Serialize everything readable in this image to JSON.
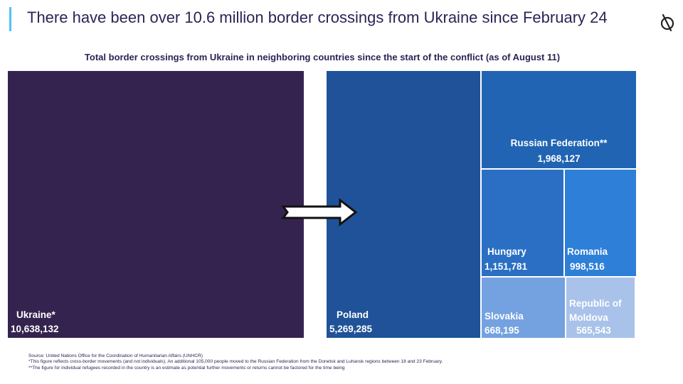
{
  "header": {
    "title": "There have been over 10.6 million border crossings from Ukraine since February 24",
    "logo_icon": "brand-logo-icon"
  },
  "chart_data": {
    "type": "treemap",
    "title": "Total border crossings from Ukraine in neighboring countries since the start of the conflict (as of August 11)",
    "source": {
      "name": "Ukraine*",
      "value": 10638132,
      "value_label": "10,638,132",
      "color": "#35234f"
    },
    "arrow_icon": "right-arrow-icon",
    "destinations": [
      {
        "name": "Poland",
        "value": 5269285,
        "value_label": "5,269,285",
        "color": "#1f5298"
      },
      {
        "name": "Russian Federation**",
        "value": 1968127,
        "value_label": "1,968,127",
        "color": "#2164b3"
      },
      {
        "name": "Hungary",
        "value": 1151781,
        "value_label": "1,151,781",
        "color": "#2a6fc3"
      },
      {
        "name": "Romania",
        "value": 998516,
        "value_label": "998,516",
        "color": "#2e7fd8"
      },
      {
        "name": "Slovakia",
        "value": 668195,
        "value_label": "668,195",
        "color": "#74a2e0"
      },
      {
        "name": "Republic of Moldova",
        "value": 565543,
        "value_label": "565,543",
        "color": "#a9c2ea"
      }
    ]
  },
  "footnotes": {
    "source": "Source: United Nations Office for the Coordination of Humanitarian Affairs (UNHCR)",
    "note1": "*This figure reflects cross-border movements (and not individuals). An additional 105,000 people moved to the Russian Federation from the Donetsk and Luhansk regions between 18 and 23 February.",
    "note2": "**The figure for individual refugees recorded in the country is an estimate as potential further movements or returns cannot be factored for the time being"
  }
}
